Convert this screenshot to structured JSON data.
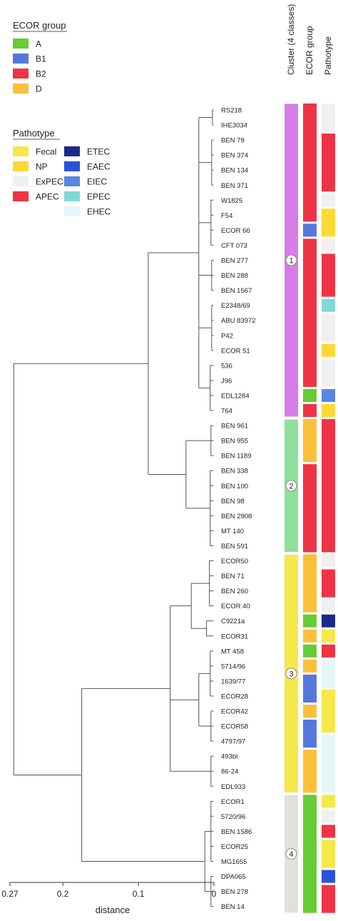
{
  "legend": {
    "ecor_title": "ECOR group",
    "ecor": [
      {
        "label": "A",
        "color": "#66cc33"
      },
      {
        "label": "B1",
        "color": "#5577dd"
      },
      {
        "label": "B2",
        "color": "#ee3344"
      },
      {
        "label": "D",
        "color": "#fbbf3a"
      }
    ],
    "patho_title": "Pathotype",
    "patho": [
      {
        "label": "Fecal",
        "color": "#f4e84a"
      },
      {
        "label": "NP",
        "color": "#fdd835"
      },
      {
        "label": "ExPEC",
        "color": "#f0f0f0"
      },
      {
        "label": "APEC",
        "color": "#ee3344"
      },
      {
        "label": "ETEC",
        "color": "#1a2a8c"
      },
      {
        "label": "EAEC",
        "color": "#2a52d6"
      },
      {
        "label": "EIEC",
        "color": "#5a85e0"
      },
      {
        "label": "EPEC",
        "color": "#7fd8d8"
      },
      {
        "label": "EHEC",
        "color": "#e4f6f6"
      }
    ]
  },
  "columns": [
    "Cluster (4 classes)",
    "ECOR group",
    "Pathotype"
  ],
  "axis": {
    "label": "distance",
    "ticks": [
      "0.27",
      "0.2",
      "0.1",
      "0"
    ],
    "tick_values": [
      0.27,
      0.2,
      0.1,
      0
    ]
  },
  "strains": [
    "RS218",
    "IHE3034",
    "BEN 79",
    "BEN 374",
    "BEN 134",
    "BEN 371",
    "W1825",
    "F54",
    "ECOR 66",
    "CFT 073",
    "BEN 277",
    "BEN 288",
    "BEN 1567",
    "E2348/69",
    "ABU 83972",
    "P42",
    "ECOR 51",
    "536",
    "J96",
    "EDL1284",
    "764",
    "BEN 961",
    "BEN 955",
    "BEN 1189",
    "BEN 338",
    "BEN 100",
    "BEN 98",
    "BEN 2908",
    "MT 140",
    "BEN 591",
    "ECOR50",
    "BEN 71",
    "BEN 260",
    "ECOR 40",
    "C9221a",
    "ECOR31",
    "MT 458",
    "5714/96",
    "1639/77",
    "ECOR28",
    "ECOR42",
    "ECOR58",
    "4797/97",
    "493bl",
    "86-24",
    "EDL933",
    "ECOR1",
    "5720/96",
    "BEN 1586",
    "ECOR25",
    "MG1655",
    "DPA065",
    "BEN 278",
    "BEN 14"
  ],
  "clusters": [
    {
      "label": "1",
      "color": "#d77be6",
      "from": 0,
      "to": 20
    },
    {
      "label": "2",
      "color": "#8fe09a",
      "from": 21,
      "to": 29
    },
    {
      "label": "3",
      "color": "#f4e84a",
      "from": 30,
      "to": 45
    },
    {
      "label": "4",
      "color": "#e0e0dc",
      "from": 46,
      "to": 53
    }
  ],
  "ecor_segments": [
    {
      "group": "B2",
      "from": 0,
      "to": 7
    },
    {
      "group": "B1",
      "from": 8,
      "to": 8
    },
    {
      "group": "B2",
      "from": 9,
      "to": 18
    },
    {
      "group": "A",
      "from": 19,
      "to": 19
    },
    {
      "group": "B2",
      "from": 20,
      "to": 20
    },
    {
      "group": "D",
      "from": 21,
      "to": 23
    },
    {
      "group": "B2",
      "from": 24,
      "to": 29
    },
    {
      "group": "D",
      "from": 30,
      "to": 33
    },
    {
      "group": "A",
      "from": 34,
      "to": 34
    },
    {
      "group": "D",
      "from": 35,
      "to": 35
    },
    {
      "group": "A",
      "from": 36,
      "to": 36
    },
    {
      "group": "D",
      "from": 37,
      "to": 37
    },
    {
      "group": "B1",
      "from": 38,
      "to": 39
    },
    {
      "group": "D",
      "from": 40,
      "to": 40
    },
    {
      "group": "B1",
      "from": 41,
      "to": 42
    },
    {
      "group": "D",
      "from": 43,
      "to": 45
    },
    {
      "group": "A",
      "from": 46,
      "to": 53
    }
  ],
  "patho_segments": [
    {
      "type": "ExPEC",
      "from": 0,
      "to": 1
    },
    {
      "type": "APEC",
      "from": 2,
      "to": 5
    },
    {
      "type": "ExPEC",
      "from": 6,
      "to": 6
    },
    {
      "type": "NP",
      "from": 7,
      "to": 8
    },
    {
      "type": "ExPEC",
      "from": 9,
      "to": 9
    },
    {
      "type": "APEC",
      "from": 10,
      "to": 12
    },
    {
      "type": "EPEC",
      "from": 13,
      "to": 13
    },
    {
      "type": "ExPEC",
      "from": 14,
      "to": 15
    },
    {
      "type": "NP",
      "from": 16,
      "to": 16
    },
    {
      "type": "ExPEC",
      "from": 17,
      "to": 18
    },
    {
      "type": "EIEC",
      "from": 19,
      "to": 19
    },
    {
      "type": "NP",
      "from": 20,
      "to": 20
    },
    {
      "type": "APEC",
      "from": 21,
      "to": 29
    },
    {
      "type": "ExPEC",
      "from": 30,
      "to": 30
    },
    {
      "type": "APEC",
      "from": 31,
      "to": 32
    },
    {
      "type": "ExPEC",
      "from": 33,
      "to": 33
    },
    {
      "type": "ETEC",
      "from": 34,
      "to": 34
    },
    {
      "type": "Fecal",
      "from": 35,
      "to": 35
    },
    {
      "type": "APEC",
      "from": 36,
      "to": 36
    },
    {
      "type": "EHEC",
      "from": 37,
      "to": 38
    },
    {
      "type": "Fecal",
      "from": 39,
      "to": 41
    },
    {
      "type": "EHEC",
      "from": 42,
      "to": 45
    },
    {
      "type": "Fecal",
      "from": 46,
      "to": 46
    },
    {
      "type": "ExPEC",
      "from": 47,
      "to": 47
    },
    {
      "type": "APEC",
      "from": 48,
      "to": 48
    },
    {
      "type": "Fecal",
      "from": 49,
      "to": 50
    },
    {
      "type": "EAEC",
      "from": 51,
      "to": 51
    },
    {
      "type": "APEC",
      "from": 52,
      "to": 53
    }
  ],
  "tree": {
    "heights": {
      "c1": 0.087,
      "c2": 0.037,
      "c34": 0.175,
      "c3": 0.058,
      "c4": 0.047,
      "root": 0.265
    }
  }
}
